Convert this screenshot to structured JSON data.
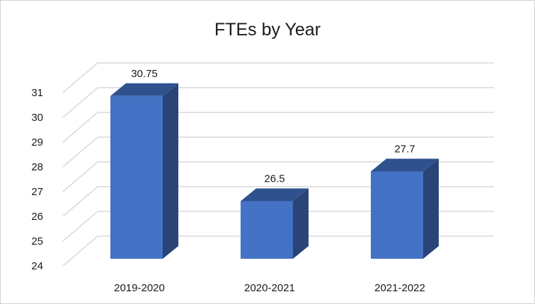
{
  "chart_data": {
    "type": "bar",
    "title": "FTEs by Year",
    "xlabel": "",
    "ylabel": "",
    "categories": [
      "2019-2020",
      "2020-2021",
      "2021-2022"
    ],
    "values": [
      30.75,
      26.5,
      27.7
    ],
    "data_labels": [
      "30.75",
      "26.5",
      "27.7"
    ],
    "ylim": [
      24,
      31
    ],
    "yticks": [
      24,
      25,
      26,
      27,
      28,
      29,
      30,
      31
    ],
    "grid": true,
    "legend": "none",
    "style": "3d-column",
    "colors": {
      "bar_front": "#4472c4",
      "bar_top": "#2f528f",
      "bar_side": "#2a4478",
      "gridline": "#d9d9d9",
      "text": "#1a1a1a"
    }
  }
}
